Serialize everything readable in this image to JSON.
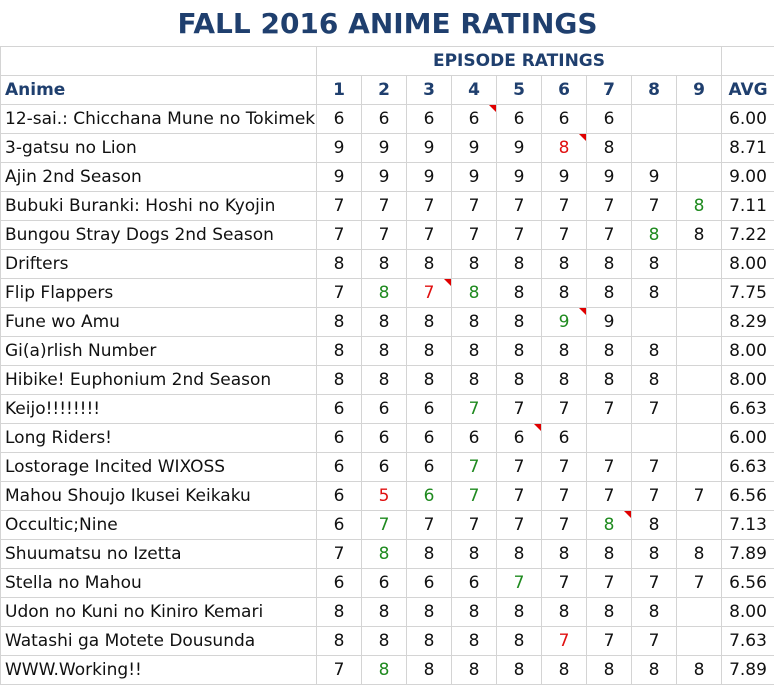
{
  "title": "FALL 2016 ANIME RATINGS",
  "episode_header": "EPISODE RATINGS",
  "columns": {
    "anime": "Anime",
    "episodes": [
      "1",
      "2",
      "3",
      "4",
      "5",
      "6",
      "7",
      "8",
      "9"
    ],
    "avg": "AVG"
  },
  "colors": {
    "header": "#1f3f6e",
    "up": "#1f8a1f",
    "down": "#e01010",
    "note": "#e00000"
  },
  "rows": [
    {
      "name": "12-sai.: Chicchana Mune no Tokimeki",
      "ratings": [
        "6",
        "6",
        "6",
        "6",
        "6",
        "6",
        "6",
        "",
        ""
      ],
      "avg": "6.00",
      "colors": [
        "",
        "",
        "",
        "",
        "",
        "",
        "",
        "",
        ""
      ],
      "notes": [
        3
      ]
    },
    {
      "name": "3-gatsu no Lion",
      "ratings": [
        "9",
        "9",
        "9",
        "9",
        "9",
        "8",
        "8",
        "",
        ""
      ],
      "avg": "8.71",
      "colors": [
        "",
        "",
        "",
        "",
        "",
        "red",
        "",
        "",
        ""
      ],
      "notes": [
        5
      ]
    },
    {
      "name": "Ajin 2nd Season",
      "ratings": [
        "9",
        "9",
        "9",
        "9",
        "9",
        "9",
        "9",
        "9",
        ""
      ],
      "avg": "9.00",
      "colors": [
        "",
        "",
        "",
        "",
        "",
        "",
        "",
        "",
        ""
      ],
      "notes": []
    },
    {
      "name": "Bubuki Buranki: Hoshi no Kyojin",
      "ratings": [
        "7",
        "7",
        "7",
        "7",
        "7",
        "7",
        "7",
        "7",
        "8"
      ],
      "avg": "7.11",
      "colors": [
        "",
        "",
        "",
        "",
        "",
        "",
        "",
        "",
        "green"
      ],
      "notes": []
    },
    {
      "name": "Bungou Stray Dogs 2nd Season",
      "ratings": [
        "7",
        "7",
        "7",
        "7",
        "7",
        "7",
        "7",
        "8",
        "8"
      ],
      "avg": "7.22",
      "colors": [
        "",
        "",
        "",
        "",
        "",
        "",
        "",
        "green",
        ""
      ],
      "notes": []
    },
    {
      "name": "Drifters",
      "ratings": [
        "8",
        "8",
        "8",
        "8",
        "8",
        "8",
        "8",
        "8",
        ""
      ],
      "avg": "8.00",
      "colors": [
        "",
        "",
        "",
        "",
        "",
        "",
        "",
        "",
        ""
      ],
      "notes": []
    },
    {
      "name": "Flip Flappers",
      "ratings": [
        "7",
        "8",
        "7",
        "8",
        "8",
        "8",
        "8",
        "8",
        ""
      ],
      "avg": "7.75",
      "colors": [
        "",
        "green",
        "red",
        "green",
        "",
        "",
        "",
        "",
        ""
      ],
      "notes": [
        2
      ]
    },
    {
      "name": "Fune wo Amu",
      "ratings": [
        "8",
        "8",
        "8",
        "8",
        "8",
        "9",
        "9",
        "",
        ""
      ],
      "avg": "8.29",
      "colors": [
        "",
        "",
        "",
        "",
        "",
        "green",
        "",
        "",
        ""
      ],
      "notes": [
        5
      ]
    },
    {
      "name": "Gi(a)rlish Number",
      "ratings": [
        "8",
        "8",
        "8",
        "8",
        "8",
        "8",
        "8",
        "8",
        ""
      ],
      "avg": "8.00",
      "colors": [
        "",
        "",
        "",
        "",
        "",
        "",
        "",
        "",
        ""
      ],
      "notes": []
    },
    {
      "name": "Hibike! Euphonium 2nd Season",
      "ratings": [
        "8",
        "8",
        "8",
        "8",
        "8",
        "8",
        "8",
        "8",
        ""
      ],
      "avg": "8.00",
      "colors": [
        "",
        "",
        "",
        "",
        "",
        "",
        "",
        "",
        ""
      ],
      "notes": []
    },
    {
      "name": "Keijo!!!!!!!!",
      "ratings": [
        "6",
        "6",
        "6",
        "7",
        "7",
        "7",
        "7",
        "7",
        ""
      ],
      "avg": "6.63",
      "colors": [
        "",
        "",
        "",
        "green",
        "",
        "",
        "",
        "",
        ""
      ],
      "notes": []
    },
    {
      "name": "Long Riders!",
      "ratings": [
        "6",
        "6",
        "6",
        "6",
        "6",
        "6",
        "",
        "",
        ""
      ],
      "avg": "6.00",
      "colors": [
        "",
        "",
        "",
        "",
        "",
        "",
        "",
        "",
        ""
      ],
      "notes": [
        4
      ]
    },
    {
      "name": "Lostorage Incited WIXOSS",
      "ratings": [
        "6",
        "6",
        "6",
        "7",
        "7",
        "7",
        "7",
        "7",
        ""
      ],
      "avg": "6.63",
      "colors": [
        "",
        "",
        "",
        "green",
        "",
        "",
        "",
        "",
        ""
      ],
      "notes": []
    },
    {
      "name": "Mahou Shoujo Ikusei Keikaku",
      "ratings": [
        "6",
        "5",
        "6",
        "7",
        "7",
        "7",
        "7",
        "7",
        "7"
      ],
      "avg": "6.56",
      "colors": [
        "",
        "red",
        "green",
        "green",
        "",
        "",
        "",
        "",
        ""
      ],
      "notes": []
    },
    {
      "name": "Occultic;Nine",
      "ratings": [
        "6",
        "7",
        "7",
        "7",
        "7",
        "7",
        "8",
        "8",
        ""
      ],
      "avg": "7.13",
      "colors": [
        "",
        "green",
        "",
        "",
        "",
        "",
        "green",
        "",
        ""
      ],
      "notes": [
        6
      ]
    },
    {
      "name": "Shuumatsu no Izetta",
      "ratings": [
        "7",
        "8",
        "8",
        "8",
        "8",
        "8",
        "8",
        "8",
        "8"
      ],
      "avg": "7.89",
      "colors": [
        "",
        "green",
        "",
        "",
        "",
        "",
        "",
        "",
        ""
      ],
      "notes": []
    },
    {
      "name": "Stella no Mahou",
      "ratings": [
        "6",
        "6",
        "6",
        "6",
        "7",
        "7",
        "7",
        "7",
        "7"
      ],
      "avg": "6.56",
      "colors": [
        "",
        "",
        "",
        "",
        "green",
        "",
        "",
        "",
        ""
      ],
      "notes": []
    },
    {
      "name": "Udon no Kuni no Kiniro Kemari",
      "ratings": [
        "8",
        "8",
        "8",
        "8",
        "8",
        "8",
        "8",
        "8",
        ""
      ],
      "avg": "8.00",
      "colors": [
        "",
        "",
        "",
        "",
        "",
        "",
        "",
        "",
        ""
      ],
      "notes": []
    },
    {
      "name": "Watashi ga Motete Dousunda",
      "ratings": [
        "8",
        "8",
        "8",
        "8",
        "8",
        "7",
        "7",
        "7",
        ""
      ],
      "avg": "7.63",
      "colors": [
        "",
        "",
        "",
        "",
        "",
        "red",
        "",
        "",
        ""
      ],
      "notes": []
    },
    {
      "name": "WWW.Working!!",
      "ratings": [
        "7",
        "8",
        "8",
        "8",
        "8",
        "8",
        "8",
        "8",
        "8"
      ],
      "avg": "7.89",
      "colors": [
        "",
        "green",
        "",
        "",
        "",
        "",
        "",
        "",
        ""
      ],
      "notes": []
    }
  ]
}
